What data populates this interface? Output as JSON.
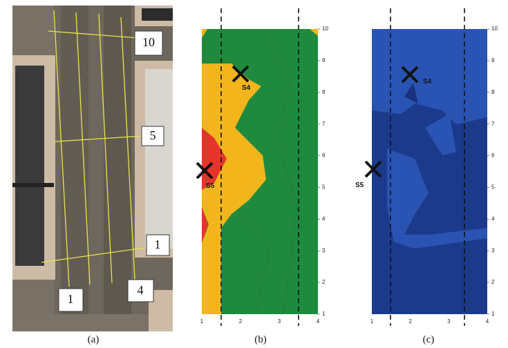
{
  "figure": {
    "panel_labels": [
      "(a)",
      "(b)",
      "(c)"
    ],
    "photo_labels": {
      "rows": [
        "10",
        "5",
        "1"
      ],
      "columns": [
        "1",
        "4"
      ]
    },
    "panels": [
      {
        "markers": [
          "S4",
          "S5"
        ],
        "xticks": [
          1,
          2,
          3,
          4
        ],
        "yticks": [
          1,
          2,
          3,
          4,
          5,
          6,
          7,
          8,
          9,
          10
        ]
      },
      {
        "markers": [
          "S4",
          "S5"
        ],
        "xticks": [
          1,
          2,
          3,
          4
        ],
        "yticks": [
          1,
          2,
          3,
          4,
          5,
          6,
          7,
          8,
          9,
          10
        ]
      }
    ]
  }
}
